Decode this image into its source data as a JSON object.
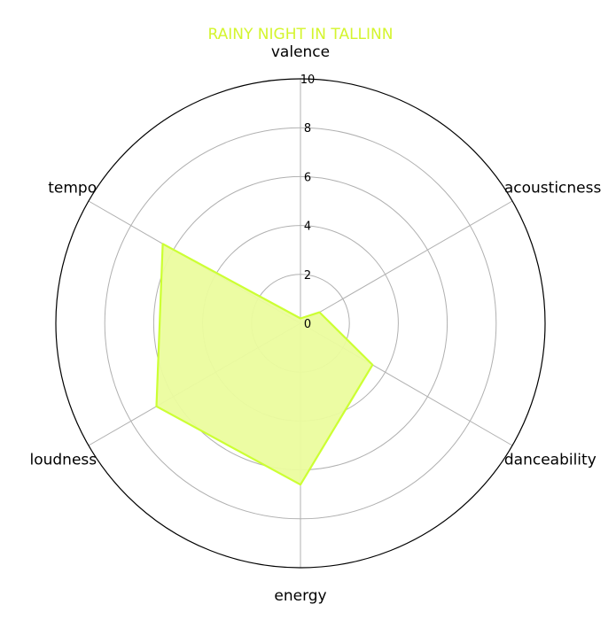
{
  "chart_data": {
    "type": "radar",
    "title": "RAINY NIGHT IN TALLINN",
    "axes": [
      "valence",
      "acousticness",
      "danceability",
      "energy",
      "loudness",
      "tempo"
    ],
    "series": [
      {
        "values": [
          0.2,
          0.9,
          3.4,
          6.6,
          6.8,
          6.5
        ]
      }
    ],
    "rlim": [
      0,
      10
    ],
    "rticks": [
      "0",
      "2",
      "4",
      "6",
      "8",
      "10"
    ],
    "grid": true,
    "colors": {
      "series": "#ccff33",
      "fill": "#ebfc9e",
      "title": "#d4f52e"
    }
  }
}
